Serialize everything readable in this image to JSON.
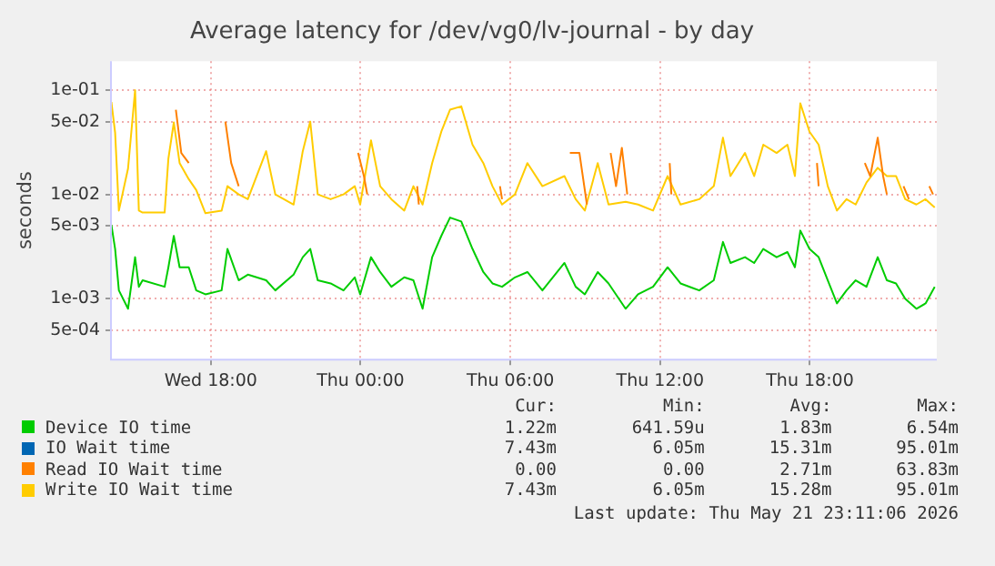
{
  "chart_data": {
    "type": "line",
    "title": "Average latency for /dev/vg0/lv-journal - by day",
    "ylabel": "seconds",
    "log": "y",
    "grid": true,
    "legend": "bottom",
    "marker": "none",
    "line_style": "solid",
    "x": [
      "2026-05-20T14:01",
      "2026-05-20T14:10",
      "2026-05-20T14:19",
      "2026-05-20T14:41",
      "2026-05-20T14:58",
      "2026-05-20T15:07",
      "2026-05-20T15:16",
      "2026-05-20T16:09",
      "2026-05-20T16:18",
      "2026-05-20T16:31",
      "2026-05-20T16:45",
      "2026-05-20T17:07",
      "2026-05-20T17:25",
      "2026-05-20T17:47",
      "2026-05-20T18:26",
      "2026-05-20T18:40",
      "2026-05-20T19:07",
      "2026-05-20T19:29",
      "2026-05-20T20:13",
      "2026-05-20T20:35",
      "2026-05-20T21:19",
      "2026-05-20T21:41",
      "2026-05-20T21:59",
      "2026-05-20T22:17",
      "2026-05-20T22:48",
      "2026-05-20T23:19",
      "2026-05-20T23:46",
      "2026-05-20T23:59",
      "2026-05-21T00:25",
      "2026-05-21T00:47",
      "2026-05-21T01:14",
      "2026-05-21T01:45",
      "2026-05-21T02:07",
      "2026-05-21T02:29",
      "2026-05-21T02:52",
      "2026-05-21T03:14",
      "2026-05-21T03:35",
      "2026-05-21T04:02",
      "2026-05-21T04:29",
      "2026-05-21T04:55",
      "2026-05-21T05:17",
      "2026-05-21T05:40",
      "2026-05-21T06:11",
      "2026-05-21T06:41",
      "2026-05-21T07:17",
      "2026-05-21T08:10",
      "2026-05-21T08:37",
      "2026-05-21T08:59",
      "2026-05-21T09:30",
      "2026-05-21T09:56",
      "2026-05-21T10:37",
      "2026-05-21T11:07",
      "2026-05-21T11:43",
      "2026-05-21T12:18",
      "2026-05-21T12:49",
      "2026-05-21T13:34",
      "2026-05-21T14:09",
      "2026-05-21T14:31",
      "2026-05-21T14:49",
      "2026-05-21T15:24",
      "2026-05-21T15:46",
      "2026-05-21T16:08",
      "2026-05-21T16:40",
      "2026-05-21T17:06",
      "2026-05-21T17:24",
      "2026-05-21T17:37",
      "2026-05-21T17:59",
      "2026-05-21T18:21",
      "2026-05-21T18:43",
      "2026-05-21T19:05",
      "2026-05-21T19:28",
      "2026-05-21T19:50",
      "2026-05-21T20:16",
      "2026-05-21T20:43",
      "2026-05-21T21:05",
      "2026-05-21T21:27",
      "2026-05-21T21:49",
      "2026-05-21T22:16",
      "2026-05-21T22:38",
      "2026-05-21T23:00"
    ],
    "series": [
      {
        "name": "Device IO time",
        "color": "#00cc00",
        "values": [
          0.0051,
          0.003,
          0.0012,
          0.0008,
          0.0025,
          0.0013,
          0.0015,
          0.0013,
          0.002,
          0.004,
          0.002,
          0.002,
          0.0012,
          0.0011,
          0.0012,
          0.003,
          0.0015,
          0.0017,
          0.0015,
          0.0012,
          0.0017,
          0.0025,
          0.003,
          0.0015,
          0.0014,
          0.0012,
          0.0016,
          0.0011,
          0.0025,
          0.0018,
          0.0013,
          0.0016,
          0.0015,
          0.0008,
          0.0025,
          0.004,
          0.006,
          0.0055,
          0.003,
          0.0018,
          0.0014,
          0.0013,
          0.0016,
          0.0018,
          0.0012,
          0.0022,
          0.0013,
          0.0011,
          0.0018,
          0.0014,
          0.0008,
          0.0011,
          0.0013,
          0.002,
          0.0014,
          0.0012,
          0.0015,
          0.0035,
          0.0022,
          0.0025,
          0.0022,
          0.003,
          0.0025,
          0.0028,
          0.002,
          0.0045,
          0.003,
          0.0025,
          0.0015,
          0.0009,
          0.0012,
          0.0015,
          0.0013,
          0.0025,
          0.0015,
          0.0014,
          0.001,
          0.0008,
          0.0009,
          0.0013
        ]
      },
      {
        "name": "IO Wait time",
        "color": "#0066b3",
        "values": [
          null,
          null,
          null,
          null,
          null,
          null,
          null,
          null,
          null,
          null,
          null,
          null,
          null,
          null,
          null,
          null,
          null,
          null,
          null,
          null,
          null,
          null,
          null,
          null,
          null,
          null,
          null,
          null,
          null,
          null,
          null,
          null,
          null,
          null,
          null,
          null,
          null,
          null,
          null,
          null,
          null,
          null,
          null,
          null,
          null,
          null,
          null,
          null,
          null,
          null,
          null,
          null,
          null,
          null,
          null,
          null,
          null,
          null,
          null,
          null,
          null,
          null,
          null,
          null,
          null,
          null,
          null,
          null,
          null,
          null,
          null,
          null,
          null,
          null,
          null,
          null,
          null,
          null,
          null,
          null
        ]
      },
      {
        "name": "Read IO Wait time",
        "color": "#ff8000",
        "x": [
          "2026-05-20T16:36",
          "2026-05-20T16:49",
          "2026-05-20T17:07",
          "2026-05-20T17:50",
          "2026-05-20T18:35",
          "2026-05-20T18:49",
          "2026-05-20T19:07",
          "2026-05-20T21:00",
          "2026-05-20T23:54",
          "2026-05-21T00:08",
          "2026-05-21T00:16",
          "2026-05-21T01:00",
          "2026-05-21T02:16",
          "2026-05-21T02:20",
          "2026-05-21T04:00",
          "2026-05-21T05:35",
          "2026-05-21T05:40",
          "2026-05-21T07:00",
          "2026-05-21T08:23",
          "2026-05-21T08:46",
          "2026-05-21T09:04",
          "2026-05-21T09:30",
          "2026-05-21T10:01",
          "2026-05-21T10:14",
          "2026-05-21T10:28",
          "2026-05-21T10:41",
          "2026-05-21T11:30",
          "2026-05-21T12:23",
          "2026-05-21T12:27",
          "2026-05-21T15:00",
          "2026-05-21T18:17",
          "2026-05-21T18:21",
          "2026-05-21T19:00",
          "2026-05-21T20:12",
          "2026-05-21T20:25",
          "2026-05-21T20:43",
          "2026-05-21T20:56",
          "2026-05-21T21:05",
          "2026-05-21T21:25",
          "2026-05-21T21:45",
          "2026-05-21T21:58",
          "2026-05-21T22:20",
          "2026-05-21T22:47",
          "2026-05-21T22:56"
        ],
        "values": [
          0.065,
          0.025,
          0.02,
          null,
          0.05,
          0.02,
          0.012,
          null,
          0.025,
          0.015,
          0.01,
          null,
          0.012,
          0.008,
          null,
          0.012,
          0.009,
          null,
          0.025,
          0.025,
          0.008,
          null,
          0.025,
          0.012,
          0.028,
          0.01,
          null,
          0.02,
          0.01,
          null,
          0.02,
          0.012,
          null,
          0.02,
          0.015,
          0.035,
          0.015,
          0.01,
          null,
          0.012,
          0.009,
          null,
          0.012,
          0.01
        ]
      },
      {
        "name": "Write IO Wait time",
        "color": "#ffcc00",
        "values": [
          0.077,
          0.039,
          0.007,
          0.0177,
          0.1,
          0.007,
          0.0067,
          0.0067,
          0.022,
          0.049,
          0.02,
          0.014,
          0.011,
          0.0066,
          0.007,
          0.012,
          0.01,
          0.009,
          0.026,
          0.01,
          0.008,
          0.026,
          0.05,
          0.01,
          0.009,
          0.01,
          0.012,
          0.008,
          0.033,
          0.012,
          0.009,
          0.007,
          0.012,
          0.008,
          0.02,
          0.04,
          0.065,
          0.07,
          0.03,
          0.02,
          0.012,
          0.008,
          0.01,
          0.02,
          0.012,
          0.015,
          0.009,
          0.007,
          0.02,
          0.008,
          0.0085,
          0.008,
          0.007,
          0.015,
          0.008,
          0.009,
          0.012,
          0.035,
          0.015,
          0.025,
          0.015,
          0.03,
          0.025,
          0.03,
          0.015,
          0.075,
          0.04,
          0.03,
          0.012,
          0.007,
          0.009,
          0.008,
          0.013,
          0.018,
          0.015,
          0.015,
          0.009,
          0.008,
          0.009,
          0.0075
        ]
      }
    ],
    "xlim": [
      "2026-05-20T14:00",
      "2026-05-21T23:05"
    ],
    "xticks": [
      {
        "value": "2026-05-20T18:00",
        "label": "Wed 18:00"
      },
      {
        "value": "2026-05-21T00:00",
        "label": "Thu 00:00"
      },
      {
        "value": "2026-05-21T06:00",
        "label": "Thu 06:00"
      },
      {
        "value": "2026-05-21T12:00",
        "label": "Thu 12:00"
      },
      {
        "value": "2026-05-21T18:00",
        "label": "Thu 18:00"
      }
    ],
    "ylim": [
      0.00026,
      0.19
    ],
    "yticks": [
      {
        "value": 0.0005,
        "label": "5e-04"
      },
      {
        "value": 0.001,
        "label": "1e-03"
      },
      {
        "value": 0.005,
        "label": "5e-03"
      },
      {
        "value": 0.01,
        "label": "1e-02"
      },
      {
        "value": 0.05,
        "label": "5e-02"
      },
      {
        "value": 0.1,
        "label": "1e-01"
      }
    ],
    "annotations": [
      "Cur:",
      "Min:",
      "Avg:",
      "Max:",
      "1.22m",
      "641.59u",
      "1.83m",
      "6.54m",
      "7.43m",
      "6.05m",
      "15.31m",
      "95.01m",
      "0.00",
      "0.00",
      "2.71m",
      "63.83m",
      "7.43m",
      "6.05m",
      "15.28m",
      "95.01m",
      "Last update: Thu May 21 23:11:06 2026"
    ]
  }
}
